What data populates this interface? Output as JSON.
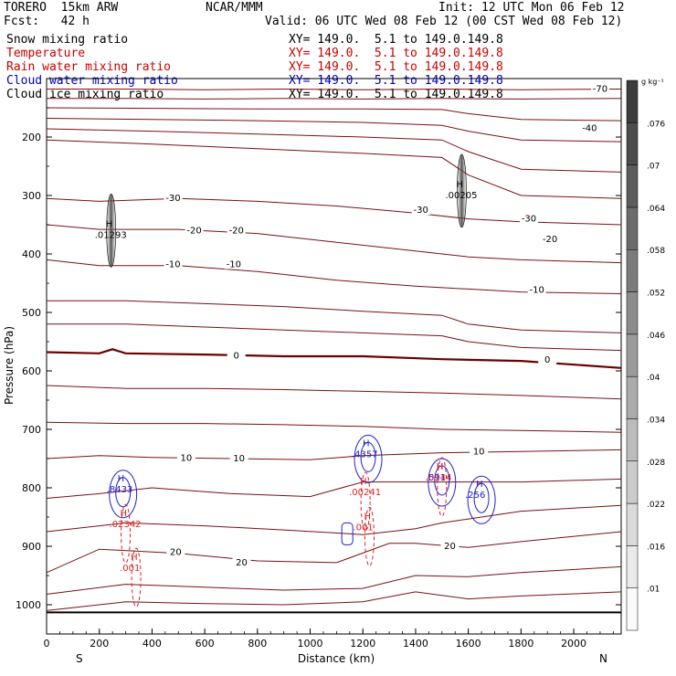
{
  "header": {
    "model": "TORERO  15km ARW",
    "org": "NCAR/MMM",
    "init": "Init: 12 UTC Mon 06 Feb 12",
    "fcst": "Fcst:   42 h",
    "valid": "Valid: 06 UTC Wed 08 Feb 12 (00 CST Wed 08 Feb 12)"
  },
  "legend": [
    {
      "name": "Snow mixing ratio",
      "color": "#000000",
      "xy": "XY= 149.0.  5.1 to 149.0.149.8"
    },
    {
      "name": "Temperature",
      "color": "#cc0000",
      "xy": "XY= 149.0.  5.1 to 149.0.149.8"
    },
    {
      "name": "Rain water mixing ratio",
      "color": "#cc0000",
      "xy": "XY= 149.0.  5.1 to 149.0.149.8"
    },
    {
      "name": "Cloud water mixing ratio",
      "color": "#0000cc",
      "xy": "XY= 149.0.  5.1 to 149.0.149.8"
    },
    {
      "name": "Cloud ice mixing ratio",
      "color": "#000000",
      "xy": "XY= 149.0.  5.1 to 149.0.149.8"
    }
  ],
  "colors": {
    "temperature": "#7a1010",
    "zero_isotherm": "#6b0000",
    "rain": "#dd2020",
    "cloud_water": "#2020cc",
    "snow": "#555555"
  },
  "chart_data": {
    "type": "line",
    "xlabel": "Distance (km)",
    "ylabel": "Pressure (hPa)",
    "xlim": [
      0,
      2180
    ],
    "ylim": [
      1050,
      100
    ],
    "x_ticks": [
      "0",
      "200",
      "400",
      "600",
      "800",
      "1000",
      "1200",
      "1400",
      "1600",
      "1800",
      "2000"
    ],
    "y_ticks": [
      "200",
      "300",
      "400",
      "500",
      "600",
      "700",
      "800",
      "900",
      "1000"
    ],
    "direction_left": "S",
    "direction_right": "N",
    "colorbar": {
      "unit": "g kg⁻¹",
      "labels": [
        ".01",
        ".016",
        ".022",
        ".028",
        ".034",
        ".04",
        ".046",
        ".052",
        ".058",
        ".064",
        ".07",
        ".076"
      ]
    },
    "temperature_contours": [
      {
        "x": [
          0,
          300,
          600,
          900,
          1200,
          1500,
          1800,
          2180
        ],
        "p": [
          118,
          118,
          119,
          118,
          119,
          118,
          119,
          118
        ],
        "label": "-70",
        "label_x": 2110
      },
      {
        "x": [
          0,
          300,
          600,
          900,
          1200,
          1500,
          1800,
          2180
        ],
        "p": [
          134,
          134,
          135,
          134,
          135,
          134,
          135,
          134
        ]
      },
      {
        "x": [
          0,
          400,
          800,
          1200,
          1500,
          1600,
          1800,
          2180
        ],
        "p": [
          150,
          151,
          152,
          152,
          153,
          160,
          170,
          172
        ]
      },
      {
        "x": [
          0,
          400,
          800,
          1200,
          1500,
          1600,
          1800,
          2180
        ],
        "p": [
          168,
          170,
          172,
          175,
          180,
          190,
          205,
          208
        ]
      },
      {
        "x": [
          0,
          400,
          800,
          1200,
          1500,
          1600,
          1800,
          2180
        ],
        "p": [
          186,
          190,
          195,
          200,
          205,
          225,
          255,
          260
        ],
        "label": "-40",
        "label_x": 2060
      },
      {
        "x": [
          0,
          400,
          800,
          1200,
          1500,
          1600,
          1800,
          2180
        ],
        "p": [
          205,
          212,
          220,
          228,
          235,
          265,
          300,
          305
        ]
      },
      {
        "x": [
          0,
          200,
          500,
          800,
          1100,
          1400,
          1600,
          1800,
          2180
        ],
        "p": [
          305,
          310,
          305,
          310,
          318,
          330,
          340,
          345,
          350
        ],
        "label": "-30",
        "label_x": 480
      },
      {
        "x": [
          0,
          200,
          500,
          800,
          1100,
          1400,
          1600,
          1800,
          2180
        ],
        "p": [
          350,
          358,
          358,
          365,
          380,
          395,
          405,
          410,
          415
        ],
        "label": "-20",
        "label_x": 710
      },
      {
        "x": [
          0,
          200,
          500,
          800,
          1100,
          1400,
          1600,
          1800,
          2180
        ],
        "p": [
          410,
          420,
          420,
          430,
          445,
          455,
          460,
          465,
          468
        ],
        "label": "-10",
        "label_x": 480
      },
      {
        "x": [
          0,
          300,
          600,
          900,
          1200,
          1500,
          1600,
          1800,
          2180
        ],
        "p": [
          480,
          480,
          485,
          490,
          498,
          505,
          520,
          530,
          535
        ]
      },
      {
        "x": [
          0,
          300,
          600,
          900,
          1200,
          1500,
          1600,
          1800,
          2180
        ],
        "p": [
          520,
          520,
          525,
          530,
          535,
          540,
          550,
          560,
          565
        ]
      }
    ],
    "zero_isotherm": {
      "x": [
        0,
        200,
        250,
        300,
        600,
        900,
        1200,
        1500,
        1800,
        2180
      ],
      "p": [
        568,
        570,
        563,
        570,
        572,
        575,
        575,
        580,
        583,
        595
      ],
      "label": "0",
      "label_x": 715
    },
    "warm_contours": [
      {
        "x": [
          0,
          300,
          600,
          900,
          1200,
          1500,
          1800,
          2180
        ],
        "p": [
          625,
          630,
          630,
          632,
          635,
          638,
          642,
          648
        ]
      },
      {
        "x": [
          0,
          300,
          600,
          900,
          1200,
          1500,
          1800,
          2180
        ],
        "p": [
          688,
          690,
          690,
          692,
          695,
          700,
          702,
          705
        ]
      },
      {
        "x": [
          0,
          200,
          400,
          700,
          1000,
          1200,
          1500,
          1800,
          2180
        ],
        "p": [
          750,
          745,
          748,
          750,
          752,
          745,
          740,
          738,
          735
        ],
        "label": "10",
        "label_x": 730
      },
      {
        "x": [
          0,
          200,
          400,
          700,
          1000,
          1200,
          1500,
          1800,
          2180
        ],
        "p": [
          818,
          810,
          800,
          810,
          815,
          790,
          790,
          790,
          785
        ]
      },
      {
        "x": [
          0,
          300,
          600,
          900,
          1200,
          1400,
          1500,
          1800,
          2180
        ],
        "p": [
          875,
          860,
          865,
          872,
          880,
          870,
          860,
          840,
          830
        ]
      },
      {
        "x": [
          0,
          200,
          500,
          800,
          1100,
          1300,
          1400,
          1600,
          1800,
          2180
        ],
        "p": [
          945,
          905,
          912,
          925,
          928,
          895,
          895,
          902,
          892,
          875
        ],
        "label": "20",
        "label_x": 760
      },
      {
        "x": [
          0,
          300,
          600,
          900,
          1200,
          1400,
          1600,
          1800,
          2180
        ],
        "p": [
          982,
          965,
          970,
          975,
          972,
          950,
          952,
          945,
          935
        ]
      },
      {
        "x": [
          0,
          300,
          600,
          900,
          1200,
          1400,
          1600,
          1800,
          2180
        ],
        "p": [
          1010,
          995,
          998,
          1000,
          995,
          978,
          990,
          985,
          978
        ]
      }
    ],
    "surface_pressure": 1013,
    "maxima": [
      {
        "field": "Cloud ice mixing ratio",
        "x": 245,
        "p": 360,
        "value": ".01293"
      },
      {
        "field": "Cloud ice mixing ratio",
        "x": 1575,
        "p": 292,
        "value": ".00205"
      },
      {
        "field": "Cloud water mixing ratio",
        "x": 290,
        "p": 795,
        "value": ".8433"
      },
      {
        "field": "Rain water mixing ratio",
        "x": 300,
        "p": 855,
        "value": ".02342"
      },
      {
        "field": "Rain water mixing ratio",
        "x": 340,
        "p": 930,
        "value": ".001"
      },
      {
        "field": "Cloud water mixing ratio",
        "x": 1220,
        "p": 735,
        "value": ".4357"
      },
      {
        "field": "Rain water mixing ratio",
        "x": 1210,
        "p": 800,
        "value": ".00241"
      },
      {
        "field": "Rain water mixing ratio",
        "x": 1225,
        "p": 860,
        "value": ".001"
      },
      {
        "field": "Cloud water mixing ratio",
        "x": 1500,
        "p": 775,
        "value": ".5914"
      },
      {
        "field": "Rain water mixing ratio",
        "x": 1500,
        "p": 775,
        "value": ".0144"
      },
      {
        "field": "Cloud water mixing ratio",
        "x": 1650,
        "p": 805,
        "value": ".256"
      }
    ],
    "temperature_labels": [
      {
        "x": 480,
        "p": 305,
        "text": "-30"
      },
      {
        "x": 1420,
        "p": 325,
        "text": "-30"
      },
      {
        "x": 1830,
        "p": 340,
        "text": "-30"
      },
      {
        "x": 560,
        "p": 360,
        "text": "-20"
      },
      {
        "x": 720,
        "p": 360,
        "text": "-20"
      },
      {
        "x": 1910,
        "p": 375,
        "text": "-20"
      },
      {
        "x": 480,
        "p": 418,
        "text": "-10"
      },
      {
        "x": 710,
        "p": 418,
        "text": "-10"
      },
      {
        "x": 1860,
        "p": 462,
        "text": "-10"
      },
      {
        "x": 720,
        "p": 574,
        "text": "0"
      },
      {
        "x": 1900,
        "p": 581,
        "text": "0"
      },
      {
        "x": 530,
        "p": 749,
        "text": "10"
      },
      {
        "x": 730,
        "p": 750,
        "text": "10"
      },
      {
        "x": 1640,
        "p": 738,
        "text": "10"
      },
      {
        "x": 490,
        "p": 910,
        "text": "20"
      },
      {
        "x": 740,
        "p": 928,
        "text": "20"
      },
      {
        "x": 1530,
        "p": 900,
        "text": "20"
      },
      {
        "x": 2060,
        "p": 185,
        "text": "-40"
      },
      {
        "x": 2100,
        "p": 118,
        "text": "-70"
      }
    ]
  }
}
